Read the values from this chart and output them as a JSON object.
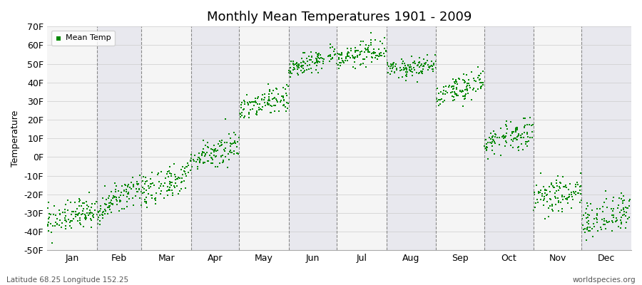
{
  "title": "Monthly Mean Temperatures 1901 - 2009",
  "ylabel": "Temperature",
  "bottom_left_label": "Latitude 68.25 Longitude 152.25",
  "bottom_right_label": "worldspecies.org",
  "legend_label": "Mean Temp",
  "dot_color": "#008800",
  "background_color": "#f0f0f0",
  "plot_bg_color": "#f0f0f0",
  "alt_bg_color": "#e0e0e8",
  "ylim": [
    -50,
    70
  ],
  "yticks": [
    -50,
    -40,
    -30,
    -20,
    -10,
    0,
    10,
    20,
    30,
    40,
    50,
    60,
    70
  ],
  "ytick_labels": [
    "-50F",
    "-40F",
    "-30F",
    "-20F",
    "-10F",
    "0F",
    "10F",
    "20F",
    "30F",
    "40F",
    "50F",
    "60F",
    "70F"
  ],
  "months": [
    "Jan",
    "Feb",
    "Mar",
    "Apr",
    "May",
    "Jun",
    "Jul",
    "Aug",
    "Sep",
    "Oct",
    "Nov",
    "Dec"
  ],
  "month_days": [
    31,
    28,
    31,
    30,
    31,
    30,
    31,
    31,
    30,
    31,
    30,
    31
  ],
  "month_means_start": [
    -35,
    -30,
    -20,
    -2,
    26,
    48,
    53,
    48,
    33,
    8,
    -22,
    -35
  ],
  "month_means_end": [
    -28,
    -15,
    -8,
    8,
    32,
    55,
    58,
    48,
    40,
    14,
    -18,
    -28
  ],
  "month_stds": [
    4,
    4,
    5,
    4,
    4,
    3,
    3,
    3,
    4,
    4,
    5,
    5
  ],
  "n_years": 109
}
